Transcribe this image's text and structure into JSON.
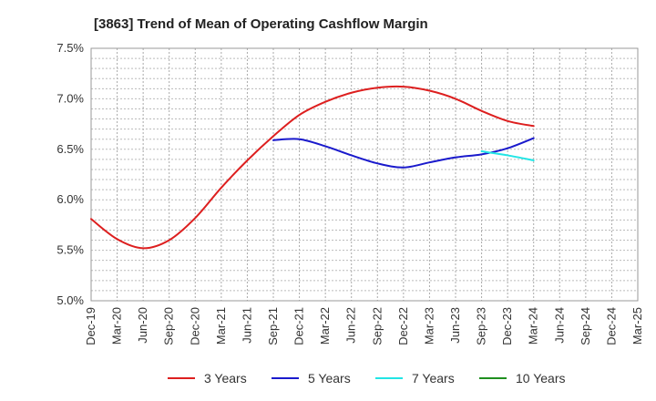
{
  "chart_data": {
    "type": "line",
    "title": "[3863]  Trend of Mean of Operating Cashflow Margin",
    "xlabel": "",
    "ylabel": "",
    "x_ticks": [
      "Dec-19",
      "Mar-20",
      "Jun-20",
      "Sep-20",
      "Dec-20",
      "Mar-21",
      "Jun-21",
      "Sep-21",
      "Dec-21",
      "Mar-22",
      "Jun-22",
      "Sep-22",
      "Dec-22",
      "Mar-23",
      "Jun-23",
      "Sep-23",
      "Dec-23",
      "Mar-24",
      "Jun-24",
      "Sep-24",
      "Dec-24",
      "Mar-25"
    ],
    "y_ticks": [
      "5.0%",
      "5.5%",
      "6.0%",
      "6.5%",
      "7.0%",
      "7.5%"
    ],
    "ylim": [
      5.0,
      7.5
    ],
    "y_unit": "%",
    "grid": true,
    "legend_position": "bottom",
    "series": [
      {
        "name": "3 Years",
        "color": "#dd1f1f",
        "x": [
          "Dec-19",
          "Mar-20",
          "Jun-20",
          "Sep-20",
          "Dec-20",
          "Mar-21",
          "Jun-21",
          "Sep-21",
          "Dec-21",
          "Mar-22",
          "Jun-22",
          "Sep-22",
          "Dec-22",
          "Mar-23",
          "Jun-23",
          "Sep-23",
          "Dec-23",
          "Mar-24"
        ],
        "values": [
          5.81,
          5.61,
          5.52,
          5.6,
          5.82,
          6.12,
          6.39,
          6.63,
          6.84,
          6.97,
          7.06,
          7.11,
          7.12,
          7.08,
          7.0,
          6.88,
          6.78,
          6.73
        ]
      },
      {
        "name": "5 Years",
        "color": "#1a1acc",
        "x": [
          "Sep-21",
          "Dec-21",
          "Mar-22",
          "Jun-22",
          "Sep-22",
          "Dec-22",
          "Mar-23",
          "Jun-23",
          "Sep-23",
          "Dec-23",
          "Mar-24"
        ],
        "values": [
          6.59,
          6.6,
          6.53,
          6.44,
          6.36,
          6.32,
          6.37,
          6.42,
          6.45,
          6.51,
          6.61
        ]
      },
      {
        "name": "7 Years",
        "color": "#22e5e5",
        "x": [
          "Sep-23",
          "Dec-23",
          "Mar-24"
        ],
        "values": [
          6.48,
          6.44,
          6.39
        ]
      },
      {
        "name": "10 Years",
        "color": "#1f8f1f",
        "x": [],
        "values": []
      }
    ]
  }
}
